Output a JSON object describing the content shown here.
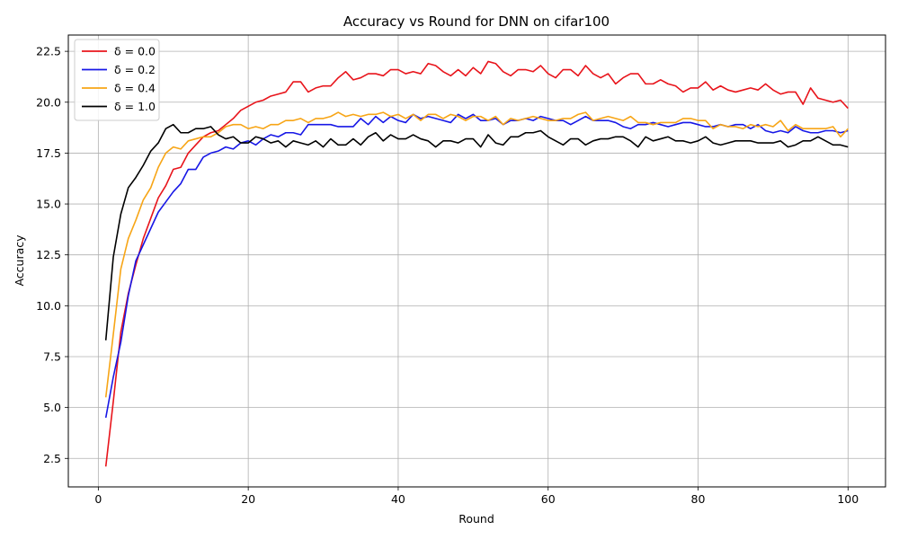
{
  "chart_data": {
    "type": "line",
    "title": "Accuracy vs Round for DNN on cifar100",
    "xlabel": "Round",
    "ylabel": "Accuracy",
    "xlim": [
      -4,
      105
    ],
    "ylim": [
      1.1,
      23.3
    ],
    "xticks": [
      0,
      20,
      40,
      60,
      80,
      100
    ],
    "xtick_labels": [
      "0",
      "20",
      "40",
      "60",
      "80",
      "100"
    ],
    "yticks": [
      2.5,
      5.0,
      7.5,
      10.0,
      12.5,
      15.0,
      17.5,
      20.0,
      22.5
    ],
    "ytick_labels": [
      "2.5",
      "5.0",
      "7.5",
      "10.0",
      "12.5",
      "15.0",
      "17.5",
      "20.0",
      "22.5"
    ],
    "grid": true,
    "legend_position": "top-left",
    "x": [
      1,
      2,
      3,
      4,
      5,
      6,
      7,
      8,
      9,
      10,
      11,
      12,
      13,
      14,
      15,
      16,
      17,
      18,
      19,
      20,
      21,
      22,
      23,
      24,
      25,
      26,
      27,
      28,
      29,
      30,
      31,
      32,
      33,
      34,
      35,
      36,
      37,
      38,
      39,
      40,
      41,
      42,
      43,
      44,
      45,
      46,
      47,
      48,
      49,
      50,
      51,
      52,
      53,
      54,
      55,
      56,
      57,
      58,
      59,
      60,
      61,
      62,
      63,
      64,
      65,
      66,
      67,
      68,
      69,
      70,
      71,
      72,
      73,
      74,
      75,
      76,
      77,
      78,
      79,
      80,
      81,
      82,
      83,
      84,
      85,
      86,
      87,
      88,
      89,
      90,
      91,
      92,
      93,
      94,
      95,
      96,
      97,
      98,
      99,
      100
    ],
    "series": [
      {
        "name": "δ = 0.0",
        "color": "#e8141b",
        "values": [
          2.1,
          5.3,
          8.7,
          10.6,
          12.0,
          13.3,
          14.3,
          15.3,
          15.9,
          16.7,
          16.8,
          17.5,
          17.9,
          18.3,
          18.5,
          18.6,
          18.9,
          19.2,
          19.6,
          19.8,
          20.0,
          20.1,
          20.3,
          20.4,
          20.5,
          21.0,
          21.0,
          20.5,
          20.7,
          20.8,
          20.8,
          21.2,
          21.5,
          21.1,
          21.2,
          21.4,
          21.4,
          21.3,
          21.6,
          21.6,
          21.4,
          21.5,
          21.4,
          21.9,
          21.8,
          21.5,
          21.3,
          21.6,
          21.3,
          21.7,
          21.4,
          22.0,
          21.9,
          21.5,
          21.3,
          21.6,
          21.6,
          21.5,
          21.8,
          21.4,
          21.2,
          21.6,
          21.6,
          21.3,
          21.8,
          21.4,
          21.2,
          21.4,
          20.9,
          21.2,
          21.4,
          21.4,
          20.9,
          20.9,
          21.1,
          20.9,
          20.8,
          20.5,
          20.7,
          20.7,
          21.0,
          20.6,
          20.8,
          20.6,
          20.5,
          20.6,
          20.7,
          20.6,
          20.9,
          20.6,
          20.4,
          20.5,
          20.5,
          19.9,
          20.7,
          20.2,
          20.1,
          20.0,
          20.1,
          19.7
        ]
      },
      {
        "name": "δ = 0.2",
        "color": "#1717e6",
        "values": [
          4.5,
          6.5,
          8.2,
          10.5,
          12.2,
          13.0,
          13.8,
          14.6,
          15.1,
          15.6,
          16.0,
          16.7,
          16.7,
          17.3,
          17.5,
          17.6,
          17.8,
          17.7,
          18.0,
          18.1,
          17.9,
          18.2,
          18.4,
          18.3,
          18.5,
          18.5,
          18.4,
          18.9,
          18.9,
          18.9,
          18.9,
          18.8,
          18.8,
          18.8,
          19.2,
          18.9,
          19.3,
          19.0,
          19.3,
          19.1,
          19.0,
          19.4,
          19.2,
          19.3,
          19.2,
          19.1,
          19.0,
          19.4,
          19.2,
          19.4,
          19.1,
          19.1,
          19.2,
          18.9,
          19.1,
          19.1,
          19.2,
          19.1,
          19.3,
          19.2,
          19.1,
          19.1,
          18.9,
          19.1,
          19.3,
          19.1,
          19.1,
          19.1,
          19.0,
          18.8,
          18.7,
          18.9,
          18.9,
          19.0,
          18.9,
          18.8,
          18.9,
          19.0,
          19.0,
          18.9,
          18.8,
          18.8,
          18.9,
          18.8,
          18.9,
          18.9,
          18.7,
          18.9,
          18.6,
          18.5,
          18.6,
          18.5,
          18.8,
          18.6,
          18.5,
          18.5,
          18.6,
          18.6,
          18.5,
          18.6
        ]
      },
      {
        "name": "δ = 0.4",
        "color": "#f7a516",
        "values": [
          5.5,
          8.6,
          11.8,
          13.3,
          14.2,
          15.2,
          15.8,
          16.8,
          17.5,
          17.8,
          17.7,
          18.1,
          18.2,
          18.3,
          18.3,
          18.5,
          18.8,
          18.9,
          18.9,
          18.7,
          18.8,
          18.7,
          18.9,
          18.9,
          19.1,
          19.1,
          19.2,
          19.0,
          19.2,
          19.2,
          19.3,
          19.5,
          19.3,
          19.4,
          19.3,
          19.4,
          19.4,
          19.5,
          19.3,
          19.4,
          19.2,
          19.4,
          19.1,
          19.4,
          19.4,
          19.2,
          19.4,
          19.3,
          19.1,
          19.3,
          19.3,
          19.1,
          19.3,
          18.9,
          19.2,
          19.1,
          19.2,
          19.3,
          19.2,
          19.1,
          19.1,
          19.2,
          19.2,
          19.4,
          19.5,
          19.1,
          19.2,
          19.3,
          19.2,
          19.1,
          19.3,
          19.0,
          19.0,
          18.9,
          19.0,
          19.0,
          19.0,
          19.2,
          19.2,
          19.1,
          19.1,
          18.7,
          18.9,
          18.8,
          18.8,
          18.7,
          18.9,
          18.8,
          18.9,
          18.8,
          19.1,
          18.6,
          18.9,
          18.7,
          18.7,
          18.7,
          18.7,
          18.8,
          18.3,
          18.7
        ]
      },
      {
        "name": "δ = 1.0",
        "color": "#000000",
        "values": [
          8.3,
          12.4,
          14.5,
          15.8,
          16.3,
          16.9,
          17.6,
          18.0,
          18.7,
          18.9,
          18.5,
          18.5,
          18.7,
          18.7,
          18.8,
          18.4,
          18.2,
          18.3,
          18.0,
          18.0,
          18.3,
          18.2,
          18.0,
          18.1,
          17.8,
          18.1,
          18.0,
          17.9,
          18.1,
          17.8,
          18.2,
          17.9,
          17.9,
          18.2,
          17.9,
          18.3,
          18.5,
          18.1,
          18.4,
          18.2,
          18.2,
          18.4,
          18.2,
          18.1,
          17.8,
          18.1,
          18.1,
          18.0,
          18.2,
          18.2,
          17.8,
          18.4,
          18.0,
          17.9,
          18.3,
          18.3,
          18.5,
          18.5,
          18.6,
          18.3,
          18.1,
          17.9,
          18.2,
          18.2,
          17.9,
          18.1,
          18.2,
          18.2,
          18.3,
          18.3,
          18.1,
          17.8,
          18.3,
          18.1,
          18.2,
          18.3,
          18.1,
          18.1,
          18.0,
          18.1,
          18.3,
          18.0,
          17.9,
          18.0,
          18.1,
          18.1,
          18.1,
          18.0,
          18.0,
          18.0,
          18.1,
          17.8,
          17.9,
          18.1,
          18.1,
          18.3,
          18.1,
          17.9,
          17.9,
          17.8
        ]
      }
    ]
  }
}
